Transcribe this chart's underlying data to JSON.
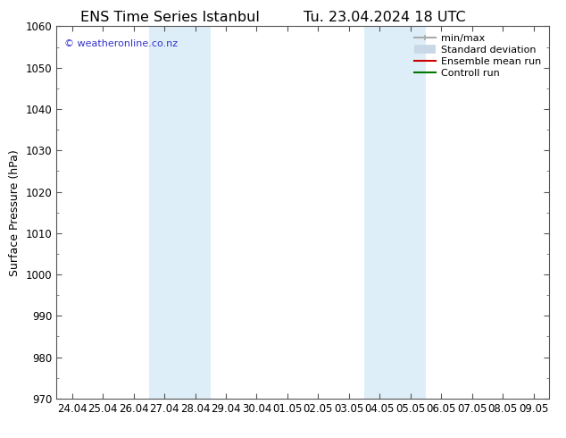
{
  "title_left": "ENS Time Series Istanbul",
  "title_right": "Tu. 23.04.2024 18 UTC",
  "ylabel": "Surface Pressure (hPa)",
  "ylim": [
    970,
    1060
  ],
  "yticks": [
    970,
    980,
    990,
    1000,
    1010,
    1020,
    1030,
    1040,
    1050,
    1060
  ],
  "xtick_labels": [
    "24.04",
    "25.04",
    "26.04",
    "27.04",
    "28.04",
    "29.04",
    "30.04",
    "01.05",
    "02.05",
    "03.05",
    "04.05",
    "05.05",
    "06.05",
    "07.05",
    "08.05",
    "09.05"
  ],
  "num_xticks": 16,
  "shaded_regions": [
    {
      "start": 3,
      "end": 5
    },
    {
      "start": 10,
      "end": 12
    }
  ],
  "shaded_color": "#ddeef8",
  "background_color": "#ffffff",
  "watermark_text": "© weatheronline.co.nz",
  "watermark_color": "#3333cc",
  "legend_items": [
    {
      "label": "min/max",
      "color": "#aaaaaa",
      "lw": 1.5
    },
    {
      "label": "Standard deviation",
      "color": "#c8d8e8",
      "lw": 7
    },
    {
      "label": "Ensemble mean run",
      "color": "#cc0000",
      "lw": 1.5
    },
    {
      "label": "Controll run",
      "color": "#007700",
      "lw": 1.5
    }
  ],
  "title_fontsize": 11.5,
  "axis_fontsize": 9,
  "tick_fontsize": 8.5,
  "legend_fontsize": 8
}
